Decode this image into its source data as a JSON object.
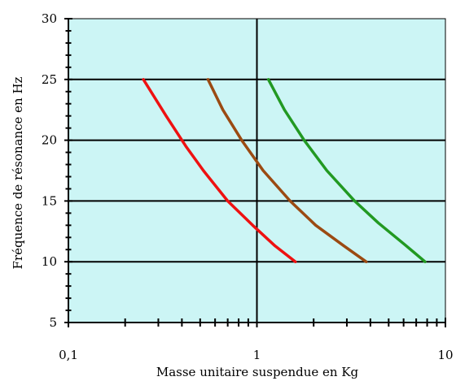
{
  "chart_data": {
    "type": "line",
    "title": "",
    "xlabel": "Masse unitaire suspendue en Kg",
    "ylabel": "Fréquence de résonance en Hz",
    "x_scale": "log",
    "xlim": [
      0.1,
      10
    ],
    "ylim": [
      5,
      30
    ],
    "x_ticks": [
      {
        "value": 0.1,
        "label": "0,1"
      },
      {
        "value": 1,
        "label": "1"
      },
      {
        "value": 10,
        "label": "10"
      }
    ],
    "y_ticks": [
      {
        "value": 5,
        "label": "5"
      },
      {
        "value": 10,
        "label": "10"
      },
      {
        "value": 15,
        "label": "15"
      },
      {
        "value": 20,
        "label": "20"
      },
      {
        "value": 25,
        "label": "25"
      },
      {
        "value": 30,
        "label": "30"
      }
    ],
    "grid": {
      "horizontal": true,
      "vertical": "major-only"
    },
    "legend": "none",
    "background_color": "#ccf5f5",
    "series": [
      {
        "color": "#ee1111",
        "points": [
          [
            0.25,
            25
          ],
          [
            0.33,
            22
          ],
          [
            0.42,
            19.5
          ],
          [
            0.52,
            17.5
          ],
          [
            0.7,
            15
          ],
          [
            0.95,
            13
          ],
          [
            1.25,
            11.3
          ],
          [
            1.6,
            10
          ]
        ]
      },
      {
        "color": "#9b4a12",
        "points": [
          [
            0.55,
            25
          ],
          [
            0.66,
            22.5
          ],
          [
            0.83,
            20
          ],
          [
            1.08,
            17.5
          ],
          [
            1.5,
            15
          ],
          [
            2.05,
            13
          ],
          [
            2.9,
            11.3
          ],
          [
            3.8,
            10
          ]
        ]
      },
      {
        "color": "#229922",
        "points": [
          [
            1.15,
            25
          ],
          [
            1.4,
            22.5
          ],
          [
            1.78,
            20
          ],
          [
            2.35,
            17.5
          ],
          [
            3.3,
            15
          ],
          [
            4.4,
            13.2
          ],
          [
            6.1,
            11.4
          ],
          [
            7.8,
            10
          ]
        ]
      }
    ]
  }
}
